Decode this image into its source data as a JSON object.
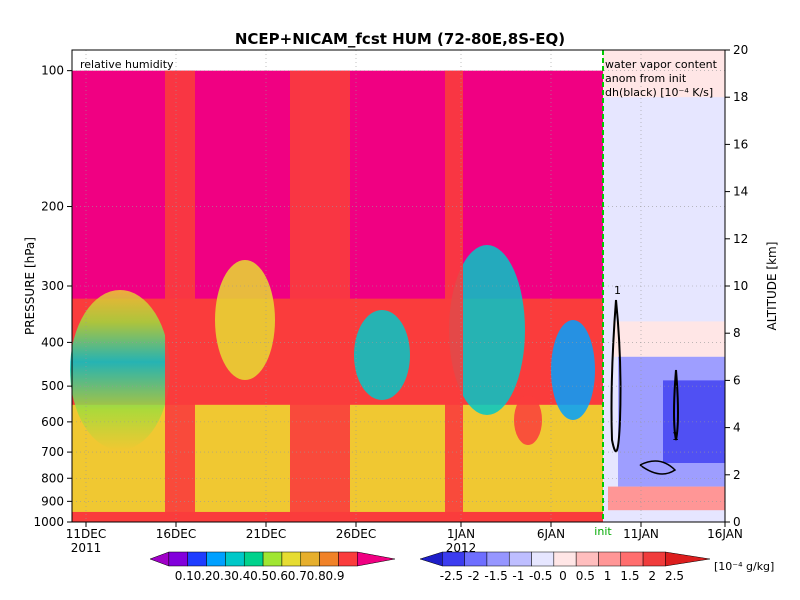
{
  "chart_data": {
    "type": "heatmap",
    "title": "NCEP+NICAM_fcst HUM (72-80E,8S-EQ)",
    "panel_left_label": "relative humidity",
    "panel_right_label_lines": [
      "water vapor content",
      "anom from init",
      "dh(black) [10⁻⁴ K/s]"
    ],
    "ylabel_left": "PRESSURE [hPa]",
    "ylabel_right": "ALTITUDE [km]",
    "init_label": "init",
    "x_ticks": [
      "11DEC",
      "16DEC",
      "21DEC",
      "26DEC",
      "1JAN",
      "6JAN",
      "11JAN",
      "16JAN"
    ],
    "x_year_labels": [
      "2011",
      "2012"
    ],
    "pressure_ticks": [
      "100",
      "200",
      "300",
      "400",
      "500",
      "600",
      "700",
      "800",
      "900",
      "1000"
    ],
    "altitude_ticks": [
      "0",
      "2",
      "4",
      "6",
      "8",
      "10",
      "12",
      "14",
      "16",
      "18",
      "20"
    ],
    "pressure_range_hPa": [
      1000,
      100
    ],
    "altitude_range_km": [
      0,
      20
    ],
    "grid": true,
    "contour_label": "1",
    "rh_colorbar": {
      "labels": [
        "0.1",
        "0.2",
        "0.3",
        "0.4",
        "0.5",
        "0.6",
        "0.7",
        "0.8",
        "0.9"
      ],
      "colors": [
        "#a000c8",
        "#8200dc",
        "#1e3cff",
        "#00a0ff",
        "#00c8c8",
        "#00d28c",
        "#a0e632",
        "#e6dc32",
        "#e6af2d",
        "#f08228",
        "#fa3c3c",
        "#f00082"
      ]
    },
    "anom_colorbar": {
      "labels": [
        "-2.5",
        "-2",
        "-1.5",
        "-1",
        "-0.5",
        "0",
        "0.5",
        "1",
        "1.5",
        "2",
        "2.5"
      ],
      "unit": "[10⁻⁴ g/kg]",
      "colors": [
        "#1e1ec8",
        "#3c3cf0",
        "#6e6eff",
        "#9696ff",
        "#bebeff",
        "#e6e6ff",
        "#ffe6e6",
        "#ffbebe",
        "#ff9696",
        "#ff6e6e",
        "#f03c3c",
        "#dc1e1e"
      ]
    }
  }
}
